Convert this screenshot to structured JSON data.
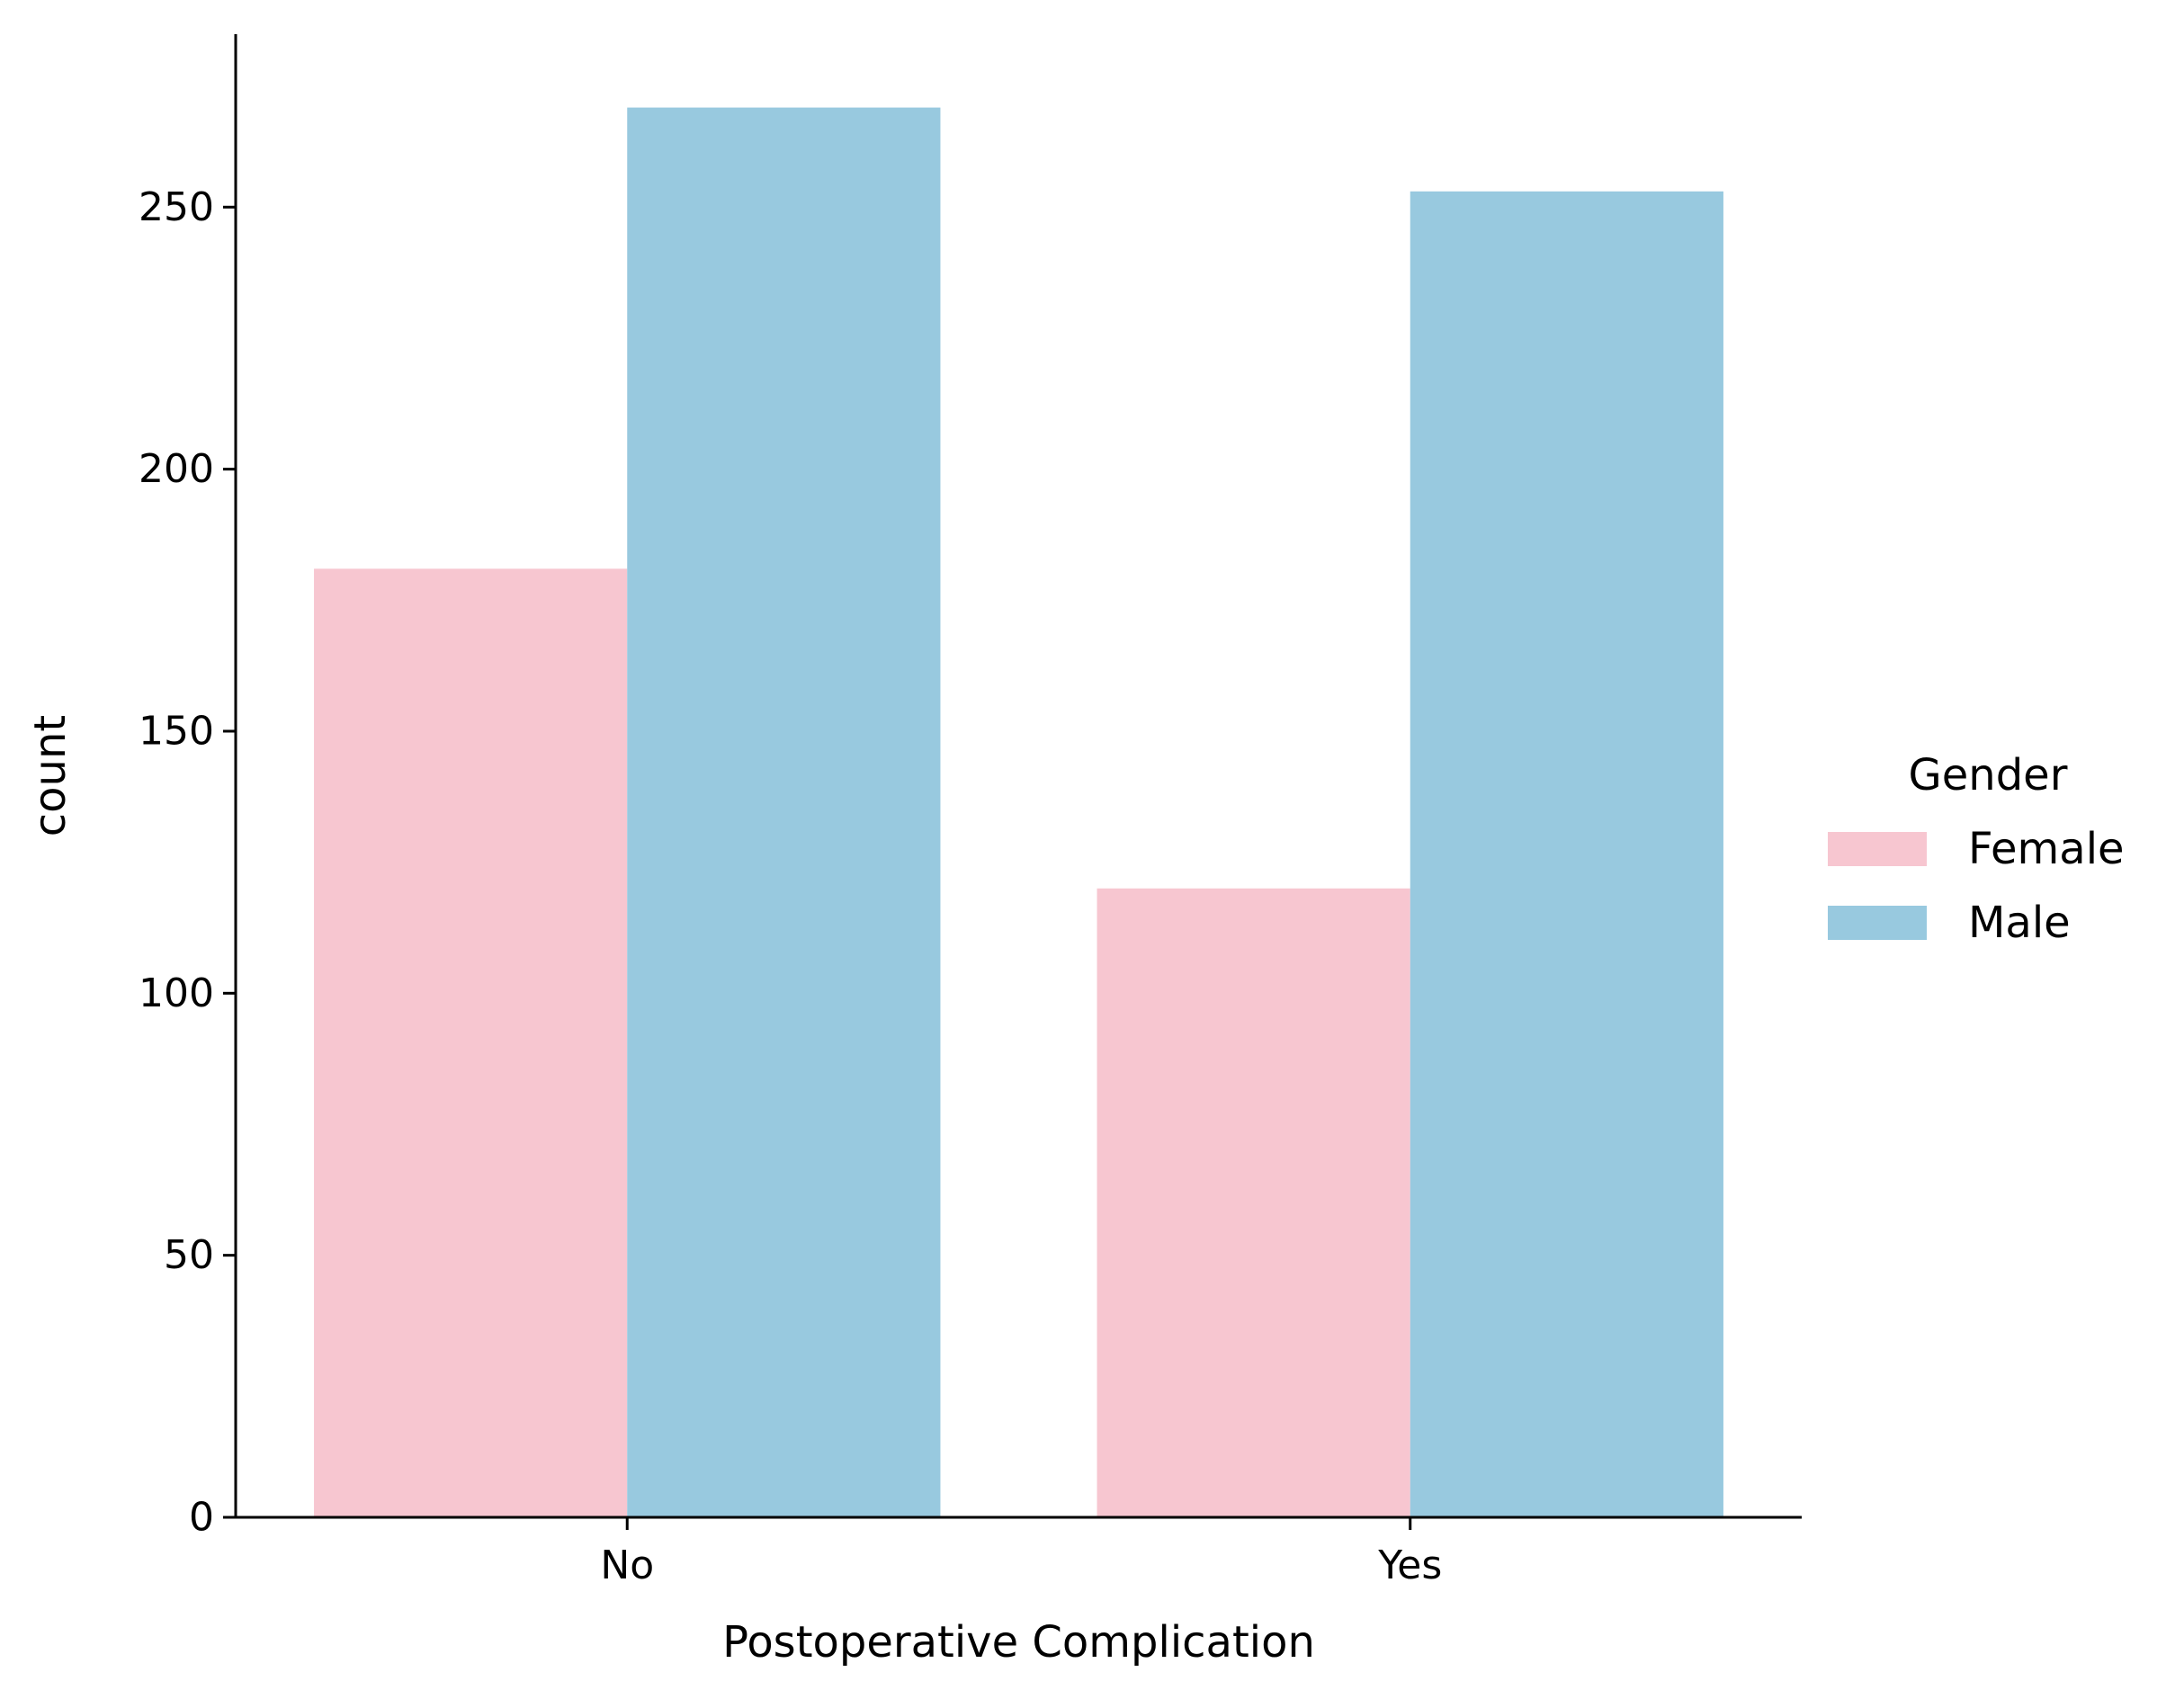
{
  "chart_data": {
    "type": "bar",
    "title": "",
    "xlabel": "Postoperative Complication",
    "ylabel": "count",
    "categories": [
      "No",
      "Yes"
    ],
    "series": [
      {
        "name": "Female",
        "color": "#f7c6d0",
        "values": [
          181,
          120
        ]
      },
      {
        "name": "Male",
        "color": "#98c9df",
        "values": [
          269,
          253
        ]
      }
    ],
    "ylim": [
      0,
      283
    ],
    "yticks": [
      0,
      50,
      100,
      150,
      200,
      250
    ],
    "grid": false,
    "legend": {
      "title": "Gender",
      "placement": "center-right, outside plot"
    }
  }
}
